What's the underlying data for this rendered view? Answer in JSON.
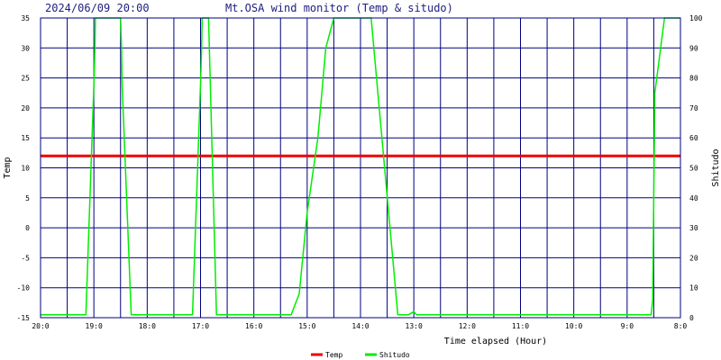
{
  "header": {
    "datetime": "2024/06/09 20:00",
    "title": "Mt.OSA wind monitor (Temp & situdo)"
  },
  "chart_data": {
    "type": "line",
    "title": "Mt.OSA wind monitor (Temp & situdo)",
    "xlabel": "Time elapsed (Hour)",
    "ylabel": "Temp",
    "y2label": "Shitudo",
    "x_ticks": [
      "20:0",
      "19:0",
      "18:0",
      "17:0",
      "16:0",
      "15:0",
      "14:0",
      "13:0",
      "12:0",
      "11:0",
      "10:0",
      "9:0",
      "8:0"
    ],
    "x_range_hours": [
      0,
      12
    ],
    "ylim": [
      -15,
      35
    ],
    "y_ticks": [
      35,
      30,
      25,
      20,
      15,
      10,
      5,
      0,
      -5,
      -10,
      -15
    ],
    "y2lim": [
      0,
      100
    ],
    "y2_ticks": [
      100,
      90,
      80,
      70,
      60,
      50,
      40,
      30,
      20,
      10,
      0
    ],
    "grid": true,
    "colors": {
      "temp": "#ee0000",
      "shitudo": "#00ee00",
      "grid": "#000080",
      "axis": "#000080",
      "title": "#202080"
    },
    "series": [
      {
        "name": "Temp",
        "axis": "left",
        "x": [
          0,
          12
        ],
        "y": [
          12,
          12
        ]
      },
      {
        "name": "Shitudo",
        "axis": "right",
        "x": [
          0,
          0.85,
          1.0,
          1.02,
          1.03,
          1.5,
          1.52,
          1.53,
          1.7,
          2.85,
          3.0,
          3.02,
          3.03,
          3.15,
          3.3,
          3.7,
          4.7,
          4.85,
          5.0,
          5.2,
          5.35,
          5.5,
          6.05,
          6.2,
          6.7,
          6.9,
          7.0,
          7.05,
          8.0,
          9.0,
          10.0,
          11.45,
          11.48,
          11.52,
          11.7,
          12.0
        ],
        "y": [
          1,
          1,
          78,
          90,
          100,
          100,
          90,
          78,
          1,
          1,
          78,
          90,
          100,
          100,
          1,
          1,
          1,
          8,
          35,
          60,
          90,
          100,
          100,
          100,
          1,
          1,
          2,
          1,
          1,
          1,
          1,
          1,
          6,
          75,
          100,
          100
        ]
      }
    ]
  },
  "legend": {
    "items": [
      {
        "label": "Temp",
        "color": "#ee0000"
      },
      {
        "label": "Shitudo",
        "color": "#00ee00"
      }
    ]
  }
}
